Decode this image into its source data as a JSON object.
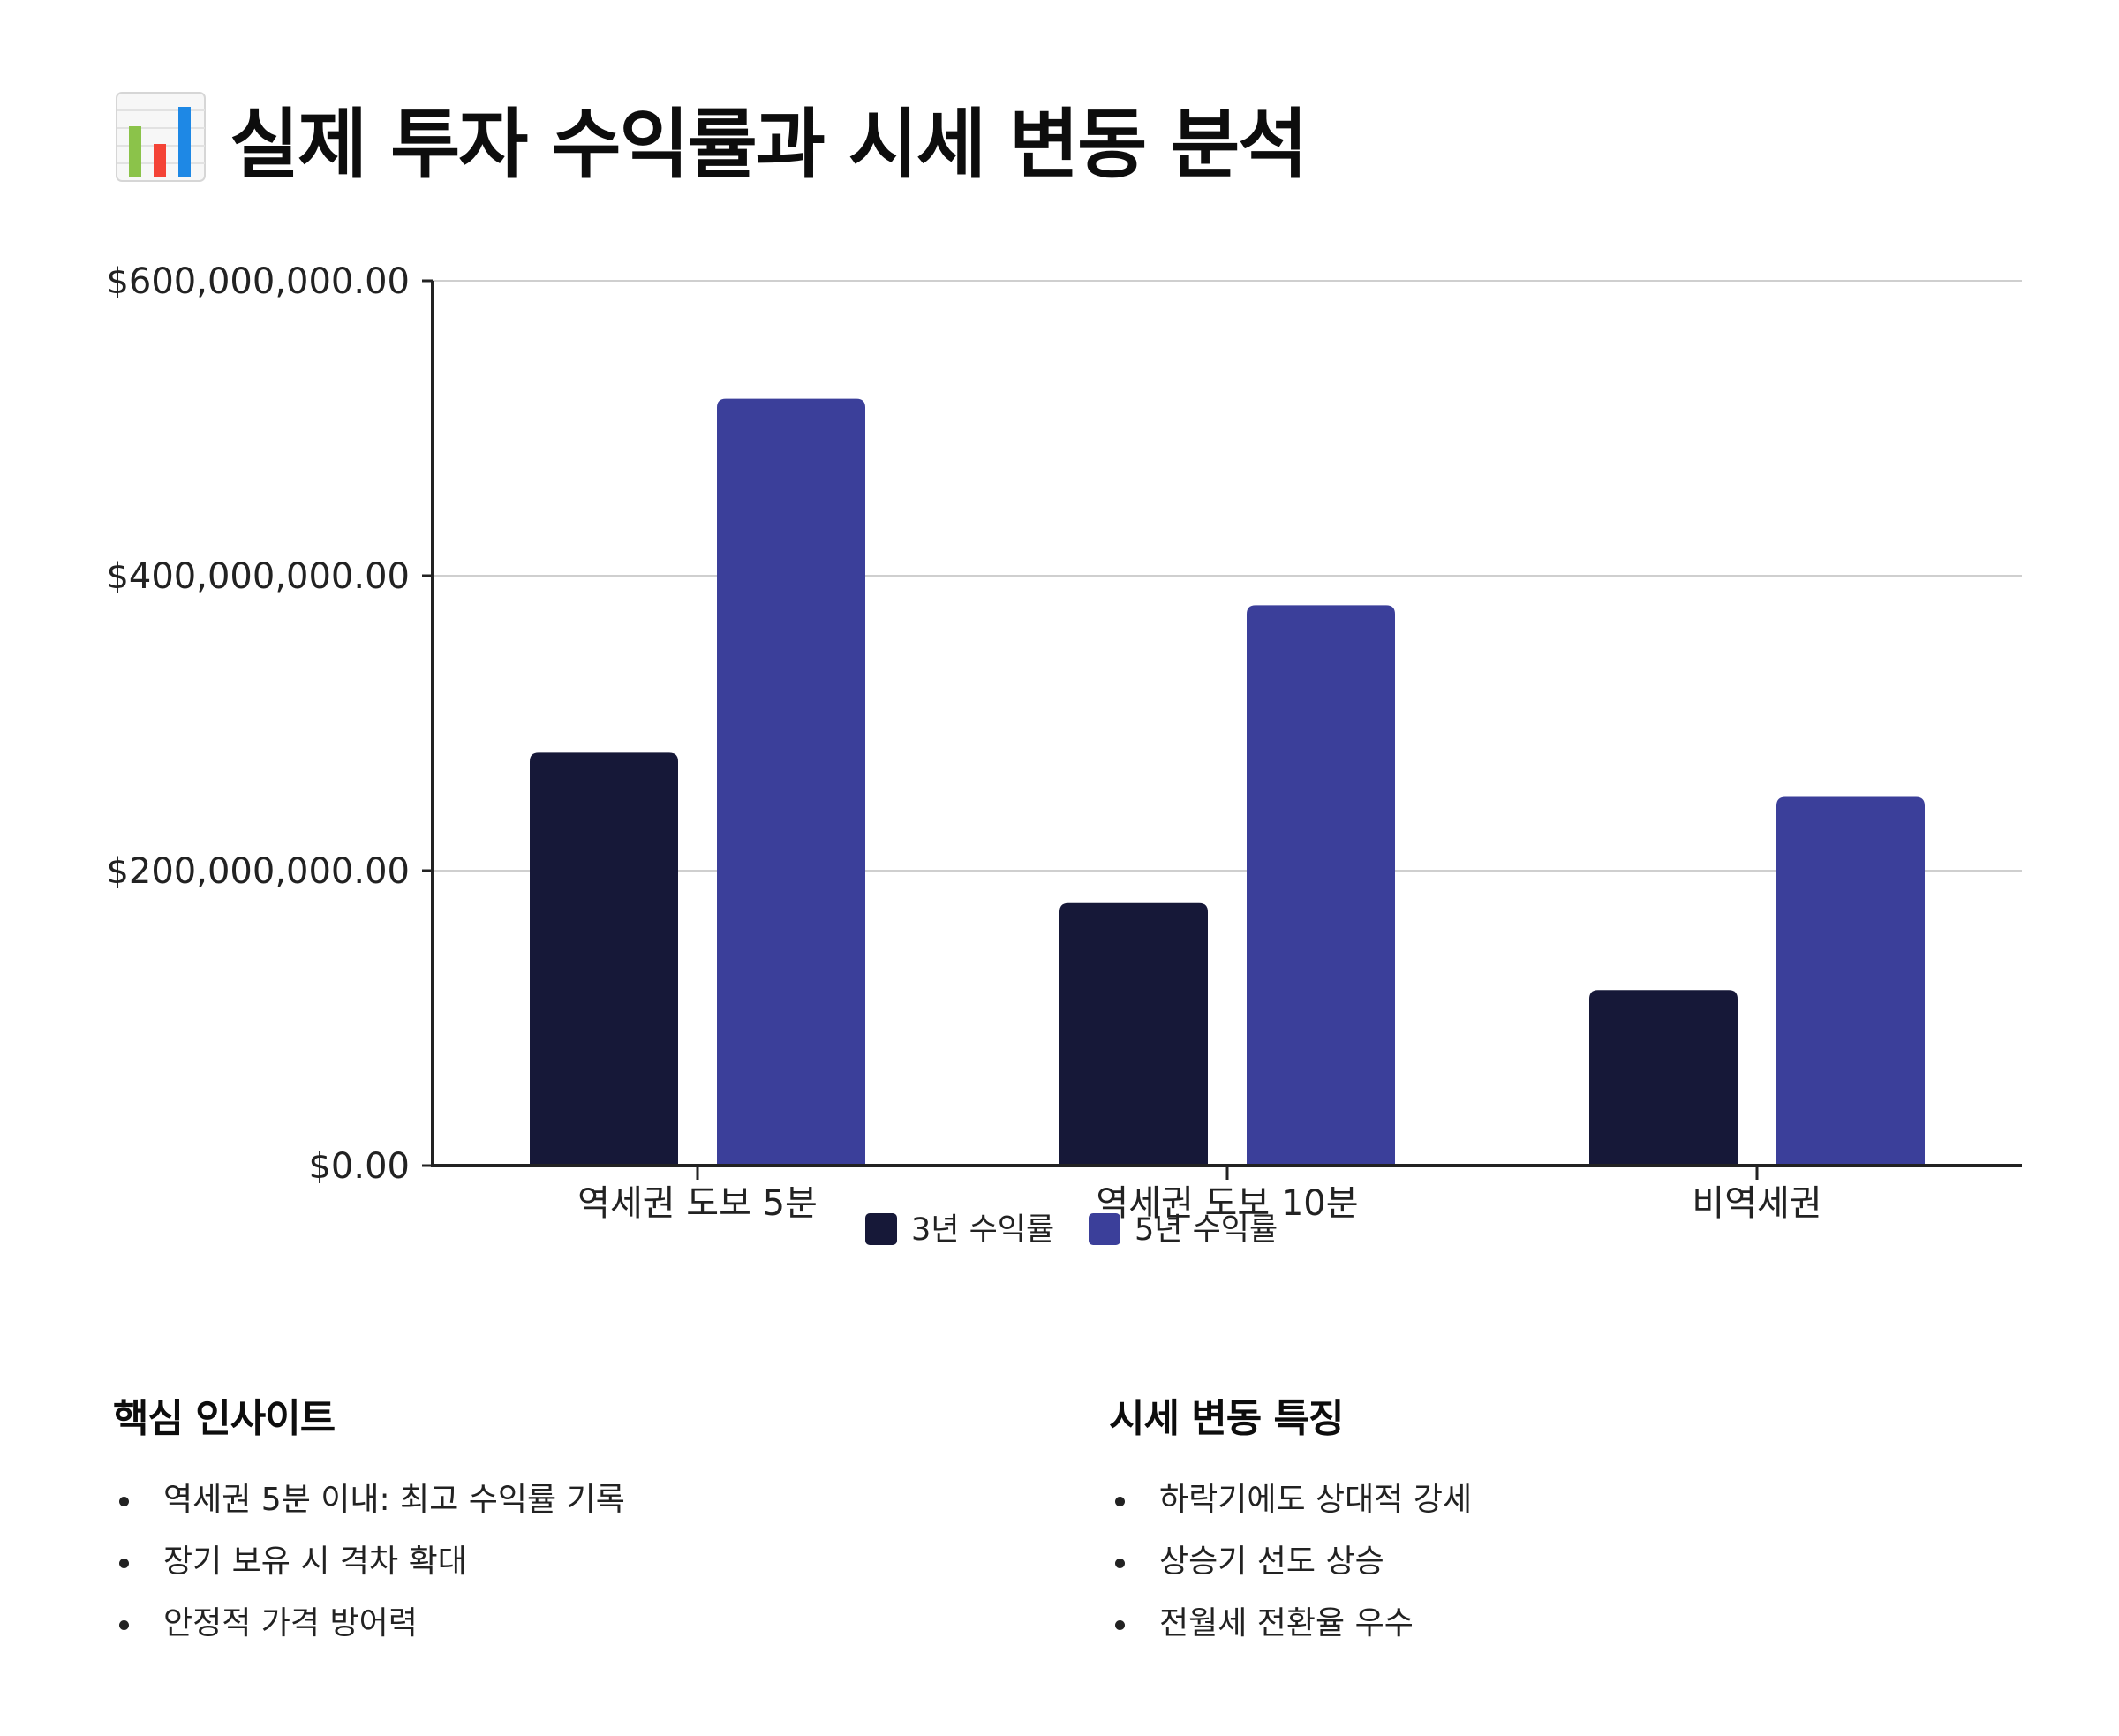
{
  "page": {
    "title": "실제 투자 수익률과 시세 변동 분석",
    "title_icon": "bar-chart-icon"
  },
  "chart_data": {
    "type": "bar",
    "categories": [
      "역세권 도보 5분",
      "역세권 도보 10분",
      "비역세권"
    ],
    "series": [
      {
        "name": "3년 수익률",
        "values": [
          280000000,
          178000000,
          119000000
        ],
        "color": "#161838"
      },
      {
        "name": "5년 수익률",
        "values": [
          520000000,
          380000000,
          250000000
        ],
        "color": "#3b3f9a"
      }
    ],
    "ylim": [
      0,
      600000000
    ],
    "yticks": [
      {
        "value": 0,
        "label": "$0.00"
      },
      {
        "value": 200000000,
        "label": "$200,000,000.00"
      },
      {
        "value": 400000000,
        "label": "$400,000,000.00"
      },
      {
        "value": 600000000,
        "label": "$600,000,000.00"
      }
    ],
    "title": "",
    "xlabel": "",
    "ylabel": "",
    "grid": true,
    "legend_position": "bottom-center"
  },
  "insights": {
    "left": {
      "heading": "핵심 인사이트",
      "items": [
        "역세권 5분 이내: 최고 수익률 기록",
        "장기 보유 시 격차 확대",
        "안정적 가격 방어력"
      ]
    },
    "right": {
      "heading": "시세 변동 특징",
      "items": [
        "하락기에도 상대적 강세",
        "상승기 선도 상승",
        "전월세 전환율 우수"
      ]
    }
  }
}
